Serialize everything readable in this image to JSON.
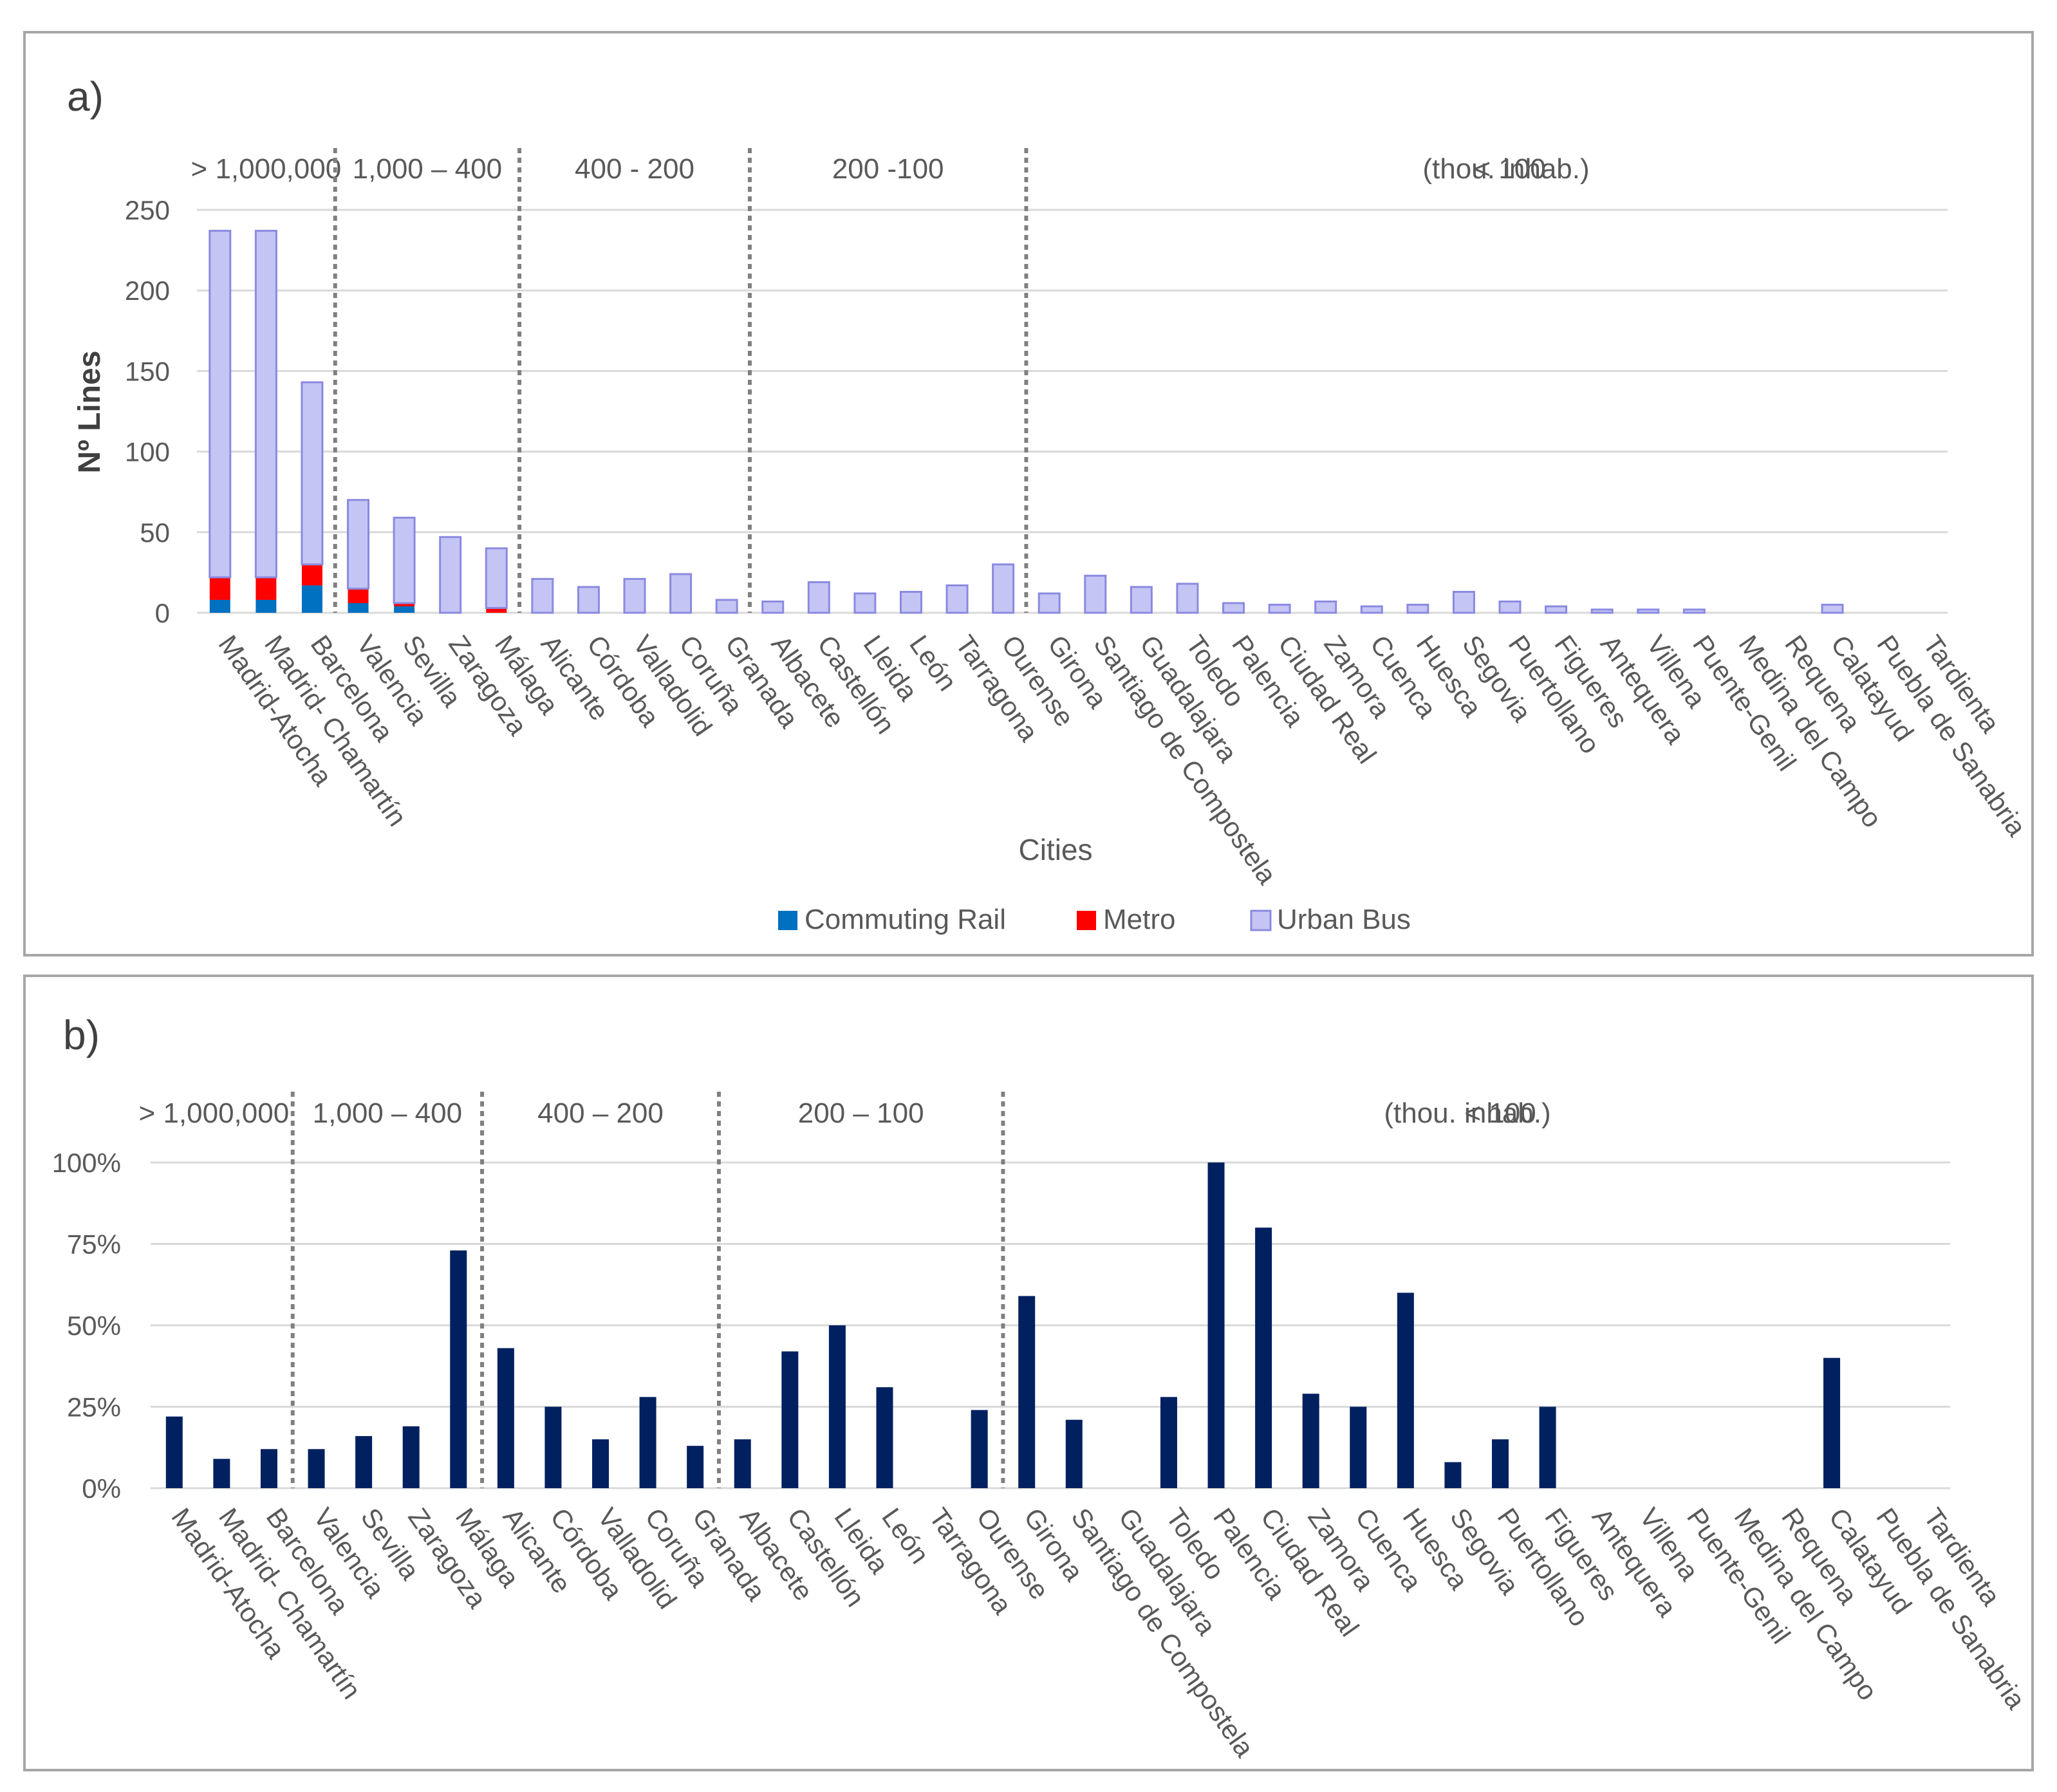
{
  "chart_data": [
    {
      "panel_label": "a)",
      "type": "bar",
      "stacked": true,
      "xlabel": "Cities",
      "ylabel": "Nº Lines",
      "ylim": [
        0,
        250
      ],
      "yticks": [
        0,
        50,
        100,
        150,
        200,
        250
      ],
      "ytick_labels": [
        "0",
        "50",
        "100",
        "150",
        "200",
        "250"
      ],
      "grid": true,
      "legend_position": "bottom",
      "unit_note": "(thou. inhab.)",
      "population_groups": [
        {
          "label": "> 1,000,000",
          "start": 0,
          "end": 2
        },
        {
          "label": "1,000 – 400",
          "start": 3,
          "end": 6
        },
        {
          "label": "400 - 200",
          "start": 7,
          "end": 11
        },
        {
          "label": "200 -100",
          "start": 12,
          "end": 17
        },
        {
          "label": "< 100",
          "start": 18,
          "end": 38
        }
      ],
      "categories": [
        "Madrid-Atocha",
        "Madrid- Chamartín",
        "Barcelona",
        "Valencia",
        "Sevilla",
        "Zaragoza",
        "Málaga",
        "Alicante",
        "Córdoba",
        "Valladolid",
        "Coruña",
        "Granada",
        "Albacete",
        "Castellón",
        "Lleida",
        "León",
        "Tarragona",
        "Ourense",
        "Girona",
        "Santiago de Compostela",
        "Guadalajara",
        "Toledo",
        "Palencia",
        "Ciudad Real",
        "Zamora",
        "Cuenca",
        "Huesca",
        "Segovia",
        "Puertollano",
        "Figueres",
        "Antequera",
        "Villena",
        "Puente-Genil",
        "Medina del Campo",
        "Requena",
        "Calatayud",
        "Puebla de Sanabria",
        "Tardienta"
      ],
      "series": [
        {
          "name": "Commuting Rail",
          "color": "#0070c0",
          "values": [
            8,
            8,
            17,
            6,
            4,
            0,
            0,
            0,
            0,
            0,
            0,
            0,
            0,
            0,
            0,
            0,
            0,
            0,
            0,
            0,
            0,
            0,
            0,
            0,
            0,
            0,
            0,
            0,
            0,
            0,
            0,
            0,
            0,
            0,
            0,
            0,
            0,
            0
          ]
        },
        {
          "name": "Metro",
          "color": "#ff0000",
          "values": [
            14,
            14,
            13,
            9,
            2,
            0,
            3,
            0,
            0,
            0,
            0,
            0,
            0,
            0,
            0,
            0,
            0,
            0,
            0,
            0,
            0,
            0,
            0,
            0,
            0,
            0,
            0,
            0,
            0,
            0,
            0,
            0,
            0,
            0,
            0,
            0,
            0,
            0
          ]
        },
        {
          "name": "Urban Bus",
          "color": "#c5c5f5",
          "values": [
            215,
            215,
            113,
            55,
            53,
            47,
            37,
            21,
            16,
            21,
            24,
            8,
            7,
            19,
            12,
            13,
            17,
            30,
            12,
            23,
            16,
            18,
            6,
            5,
            7,
            4,
            5,
            13,
            7,
            4,
            2,
            2,
            2,
            0,
            0,
            5,
            0,
            0
          ]
        }
      ]
    },
    {
      "panel_label": "b)",
      "type": "bar",
      "xlabel": "",
      "ylabel": "",
      "ylim": [
        0,
        100
      ],
      "yticks": [
        0,
        25,
        50,
        75,
        100
      ],
      "ytick_labels": [
        "0%",
        "25%",
        "50%",
        "75%",
        "100%"
      ],
      "grid": true,
      "unit_note": "(thou. inhab.)",
      "population_groups": [
        {
          "label": "> 1,000,000",
          "start": 0,
          "end": 2
        },
        {
          "label": "1,000 – 400",
          "start": 3,
          "end": 6
        },
        {
          "label": "400 – 200",
          "start": 7,
          "end": 11
        },
        {
          "label": "200 – 100",
          "start": 12,
          "end": 17
        },
        {
          "label": "< 100",
          "start": 18,
          "end": 38
        }
      ],
      "categories": [
        "Madrid-Atocha",
        "Madrid- Chamartín",
        "Barcelona",
        "Valencia",
        "Sevilla",
        "Zaragoza",
        "Málaga",
        "Alicante",
        "Córdoba",
        "Valladolid",
        "Coruña",
        "Granada",
        "Albacete",
        "Castellón",
        "Lleida",
        "León",
        "Tarragona",
        "Ourense",
        "Girona",
        "Santiago de Compostela",
        "Guadalajara",
        "Toledo",
        "Palencia",
        "Ciudad Real",
        "Zamora",
        "Cuenca",
        "Huesca",
        "Segovia",
        "Puertollano",
        "Figueres",
        "Antequera",
        "Villena",
        "Puente-Genil",
        "Medina del Campo",
        "Requena",
        "Calatayud",
        "Puebla de Sanabria",
        "Tardienta"
      ],
      "series": [
        {
          "color": "#002060",
          "values": [
            22,
            9,
            12,
            12,
            16,
            19,
            73,
            43,
            25,
            15,
            28,
            13,
            15,
            42,
            50,
            31,
            0,
            24,
            59,
            21,
            0,
            28,
            100,
            80,
            29,
            25,
            60,
            8,
            15,
            25,
            0,
            0,
            0,
            0,
            0,
            40,
            0,
            0
          ]
        }
      ]
    }
  ],
  "legend": [
    {
      "label": "Commuting Rail",
      "color": "#0070c0"
    },
    {
      "label": "Metro",
      "color": "#ff0000"
    },
    {
      "label": "Urban Bus",
      "color": "#c5c5f5"
    }
  ]
}
